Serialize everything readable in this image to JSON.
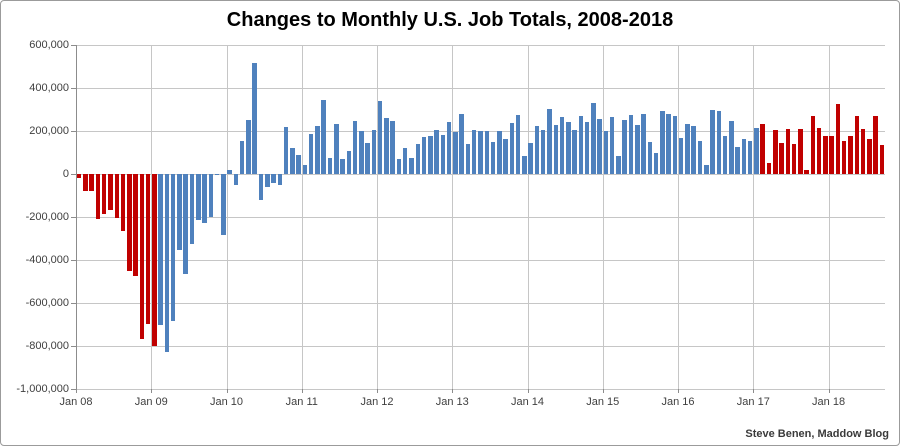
{
  "page": {
    "attribution": "Steve Benen, Maddow Blog"
  },
  "chart_data": {
    "type": "bar",
    "title": "Changes to Monthly U.S. Job Totals, 2008-2018",
    "xlabel": "",
    "ylabel": "",
    "x_start": "Jan 2008",
    "x_end": "Sep 2018",
    "months_per_year_ticks": 12,
    "total_months": 129,
    "ylim": [
      -1000000,
      600000
    ],
    "y_tick_interval": 200000,
    "grid": true,
    "legend": "none",
    "y_tick_labels": [
      "600,000",
      "400,000",
      "200,000",
      "0",
      "-200,000",
      "-400,000",
      "-600,000",
      "-800,000",
      "-1,000,000"
    ],
    "x_ticks": [
      {
        "label": "Jan 08",
        "month_index": 0
      },
      {
        "label": "Jan 09",
        "month_index": 12
      },
      {
        "label": "Jan 10",
        "month_index": 24
      },
      {
        "label": "Jan 11",
        "month_index": 36
      },
      {
        "label": "Jan 12",
        "month_index": 48
      },
      {
        "label": "Jan 13",
        "month_index": 60
      },
      {
        "label": "Jan 14",
        "month_index": 72
      },
      {
        "label": "Jan 15",
        "month_index": 84
      },
      {
        "label": "Jan 16",
        "month_index": 96
      },
      {
        "label": "Jan 17",
        "month_index": 108
      },
      {
        "label": "Jan 18",
        "month_index": 120
      }
    ],
    "colors": {
      "red_bars": "#c00000",
      "blue_bars": "#4f81bd",
      "gridline": "#c6c6c6",
      "axis": "#8c8c8c",
      "text": "#3f3f3f"
    },
    "color_segments": [
      {
        "from": 0,
        "to": 12,
        "color_key": "red_bars",
        "note": "Jan 2008 - Jan 2009"
      },
      {
        "from": 13,
        "to": 108,
        "color_key": "blue_bars",
        "note": "Feb 2009 - Jan 2017"
      },
      {
        "from": 109,
        "to": 128,
        "color_key": "red_bars",
        "note": "Feb 2017 - Sep 2018"
      }
    ],
    "series": [
      {
        "name": "Monthly change in U.S. job totals",
        "values": [
          -17000,
          -79000,
          -78000,
          -210000,
          -185000,
          -165000,
          -205000,
          -263000,
          -452000,
          -474000,
          -765000,
          -697000,
          -798000,
          -701000,
          -826000,
          -684000,
          -354000,
          -467000,
          -327000,
          -216000,
          -227000,
          -198000,
          -6000,
          -283000,
          18000,
          -50000,
          156000,
          251000,
          516000,
          -122000,
          -61000,
          -42000,
          -52000,
          221000,
          121000,
          88000,
          42000,
          188000,
          225000,
          346000,
          73000,
          235000,
          70000,
          107000,
          246000,
          202000,
          146000,
          207000,
          338000,
          259000,
          247000,
          72000,
          121000,
          76000,
          140000,
          174000,
          178000,
          207000,
          181000,
          243000,
          197000,
          280000,
          141000,
          203000,
          199000,
          201000,
          149000,
          202000,
          164000,
          237000,
          274000,
          84000,
          144000,
          222000,
          203000,
          304000,
          229000,
          267000,
          243000,
          203000,
          271000,
          243000,
          331000,
          256000,
          201000,
          266000,
          84000,
          251000,
          273000,
          228000,
          277000,
          150000,
          100000,
          295000,
          280000,
          271000,
          168000,
          233000,
          225000,
          153000,
          43000,
          297000,
          291000,
          176000,
          249000,
          124000,
          164000,
          155000,
          216000,
          232000,
          50000,
          207000,
          145000,
          210000,
          138000,
          208000,
          18000,
          271000,
          216000,
          175000,
          176000,
          324000,
          155000,
          175000,
          268000,
          208000,
          165000,
          270000,
          134000
        ]
      }
    ]
  }
}
